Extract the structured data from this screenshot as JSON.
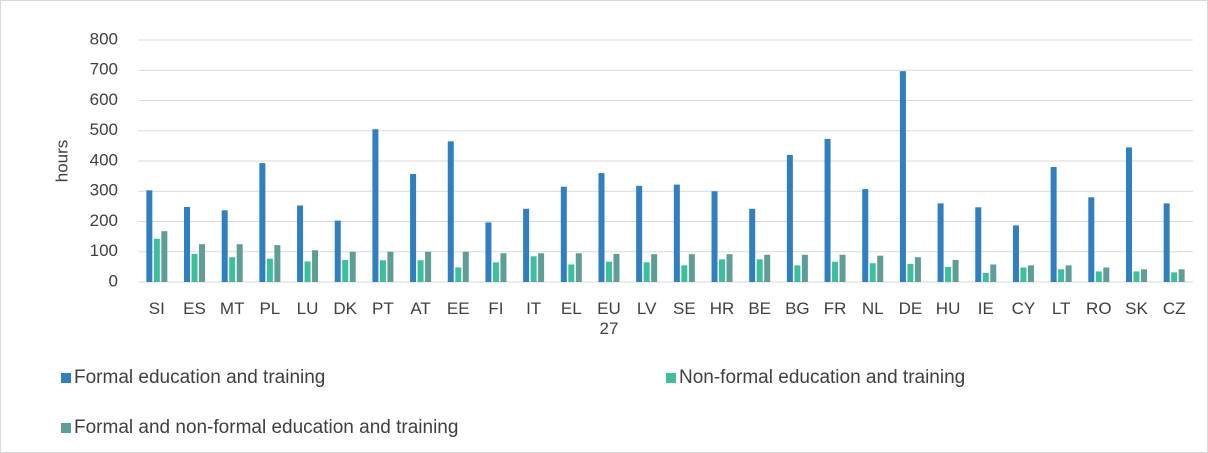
{
  "chart_data": {
    "type": "bar",
    "y_label": "hours",
    "categories": [
      "SI",
      "ES",
      "MT",
      "PL",
      "LU",
      "DK",
      "PT",
      "AT",
      "EE",
      "FI",
      "IT",
      "EL",
      "EU 27",
      "LV",
      "SE",
      "HR",
      "BE",
      "BG",
      "FR",
      "NL",
      "DE",
      "HU",
      "IE",
      "CY",
      "LT",
      "RO",
      "SK",
      "CZ"
    ],
    "series": [
      {
        "name": "Formal education and training",
        "color": "#2f7fc1",
        "values": [
          303,
          248,
          237,
          393,
          253,
          203,
          505,
          357,
          465,
          197,
          242,
          315,
          360,
          318,
          322,
          300,
          242,
          420,
          473,
          307,
          697,
          260,
          247,
          187,
          380,
          280,
          445,
          260
        ]
      },
      {
        "name": "Non-formal education and training",
        "color": "#3dbf9d",
        "values": [
          143,
          93,
          82,
          77,
          68,
          73,
          72,
          72,
          48,
          65,
          85,
          58,
          67,
          65,
          55,
          75,
          75,
          55,
          67,
          62,
          60,
          50,
          30,
          48,
          42,
          35,
          35,
          32
        ]
      },
      {
        "name": "Formal and non-formal education and training",
        "color": "#5e9e97",
        "values": [
          168,
          125,
          125,
          122,
          105,
          100,
          100,
          100,
          100,
          95,
          95,
          95,
          93,
          92,
          92,
          92,
          90,
          90,
          90,
          87,
          82,
          73,
          58,
          55,
          55,
          48,
          42,
          42
        ]
      }
    ],
    "ylim": [
      0,
      800
    ],
    "yticks": [
      0,
      100,
      200,
      300,
      400,
      500,
      600,
      700,
      800
    ],
    "grid": true
  }
}
